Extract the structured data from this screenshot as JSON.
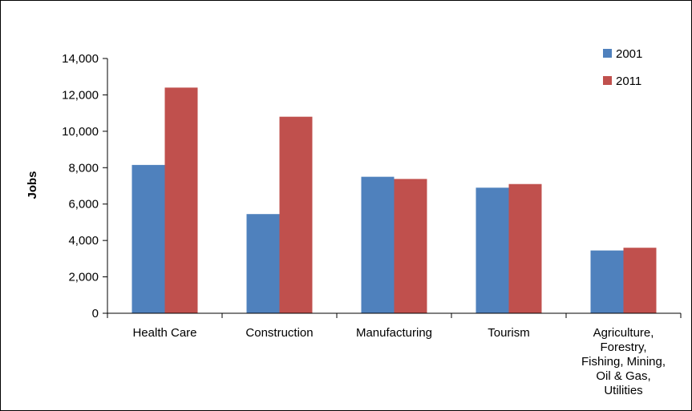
{
  "chart_data": {
    "type": "bar",
    "title": "",
    "xlabel": "",
    "ylabel": "Jobs",
    "ylim": [
      0,
      14000
    ],
    "yticks": [
      0,
      2000,
      4000,
      6000,
      8000,
      10000,
      12000,
      14000
    ],
    "ytick_labels": [
      "0",
      "2,000",
      "4,000",
      "6,000",
      "8,000",
      "10,000",
      "12,000",
      "14,000"
    ],
    "categories": [
      [
        "Health Care"
      ],
      [
        "Construction"
      ],
      [
        "Manufacturing"
      ],
      [
        "Tourism"
      ],
      [
        "Agriculture,",
        "Forestry,",
        "Fishing, Mining,",
        "Oil & Gas,",
        "Utilities"
      ]
    ],
    "series": [
      {
        "name": "2001",
        "color": "#4f81bd",
        "values": [
          8150,
          5450,
          7500,
          6900,
          3450
        ]
      },
      {
        "name": "2011",
        "color": "#c0504d",
        "values": [
          12400,
          10800,
          7380,
          7100,
          3600
        ]
      }
    ],
    "grid": false,
    "legend_position": "top-right"
  }
}
